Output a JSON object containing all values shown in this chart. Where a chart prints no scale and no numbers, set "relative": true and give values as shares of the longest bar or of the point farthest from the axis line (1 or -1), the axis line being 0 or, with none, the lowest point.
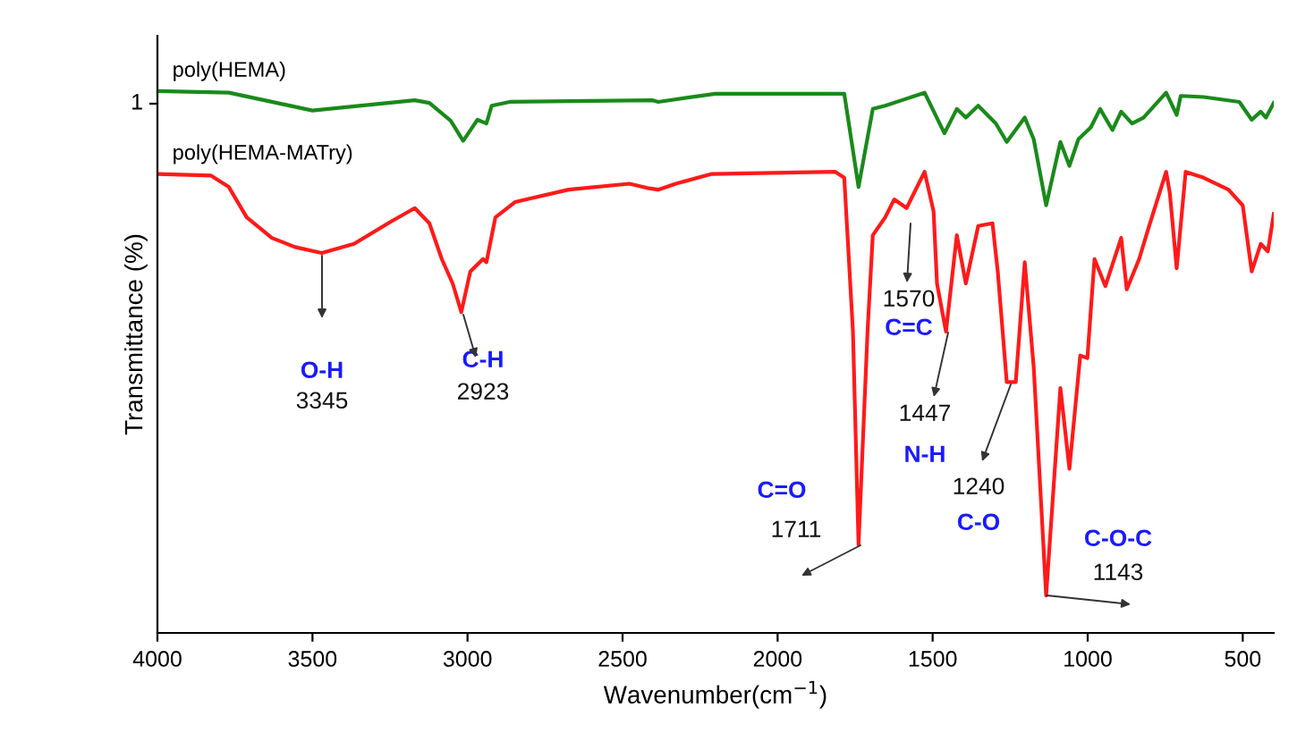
{
  "chart_data": {
    "type": "line",
    "relative": true,
    "xlabel": "Wavenumber(cm$^{−1}$)",
    "ylabel": "Transmittance (%)",
    "xlim": [
      4000,
      400
    ],
    "xticks": [
      4000,
      3500,
      3000,
      2500,
      2000,
      1500,
      1000,
      500
    ],
    "grid": false,
    "legend": false,
    "marker": "none",
    "line_style": "solid",
    "series": [
      {
        "name": "poly(HEMA)",
        "color": "#1a8a1a",
        "x": [
          4000,
          3770,
          3500,
          3170,
          3123,
          3054,
          3014,
          2968,
          2939,
          2922,
          2864,
          2403,
          2385,
          2201,
          1785,
          1739,
          1693,
          1653,
          1526,
          1462,
          1422,
          1393,
          1353,
          1296,
          1261,
          1203,
          1174,
          1134,
          1088,
          1059,
          1030,
          990,
          960,
          920,
          892,
          857,
          820,
          747,
          713,
          700,
          626,
          511,
          471,
          442,
          425,
          400
        ],
        "values": [
          1.0,
          0.997,
          0.964,
          0.983,
          0.978,
          0.945,
          0.908,
          0.947,
          0.94,
          0.973,
          0.98,
          0.983,
          0.98,
          0.995,
          0.995,
          0.823,
          0.967,
          0.973,
          0.997,
          0.922,
          0.967,
          0.951,
          0.973,
          0.94,
          0.906,
          0.951,
          0.911,
          0.789,
          0.906,
          0.862,
          0.911,
          0.933,
          0.967,
          0.928,
          0.962,
          0.94,
          0.951,
          0.997,
          0.956,
          0.991,
          0.989,
          0.98,
          0.947,
          0.962,
          0.951,
          0.978
        ]
      },
      {
        "name": "poly(HEMA-MATry)",
        "color": "#ff1a1a",
        "x": [
          4000,
          3827,
          3770,
          3712,
          3631,
          3556,
          3470,
          3366,
          3250,
          3170,
          3123,
          3083,
          3048,
          3020,
          2991,
          2950,
          2939,
          2910,
          2847,
          2674,
          2478,
          2420,
          2385,
          2328,
          2212,
          1814,
          1785,
          1757,
          1739,
          1710,
          1693,
          1653,
          1624,
          1584,
          1526,
          1497,
          1486,
          1457,
          1422,
          1393,
          1353,
          1307,
          1290,
          1261,
          1232,
          1203,
          1174,
          1134,
          1088,
          1059,
          1024,
          1001,
          978,
          943,
          892,
          874,
          834,
          805,
          747,
          735,
          713,
          684,
          626,
          546,
          500,
          471,
          442,
          419,
          400
        ],
        "values": [
          0.847,
          0.844,
          0.823,
          0.767,
          0.729,
          0.712,
          0.701,
          0.718,
          0.758,
          0.784,
          0.756,
          0.69,
          0.645,
          0.592,
          0.667,
          0.69,
          0.684,
          0.767,
          0.795,
          0.818,
          0.829,
          0.821,
          0.818,
          0.829,
          0.847,
          0.851,
          0.84,
          0.556,
          0.163,
          0.556,
          0.734,
          0.767,
          0.8,
          0.784,
          0.851,
          0.778,
          0.645,
          0.556,
          0.734,
          0.645,
          0.751,
          0.756,
          0.667,
          0.463,
          0.463,
          0.684,
          0.49,
          0.069,
          0.452,
          0.303,
          0.512,
          0.507,
          0.69,
          0.64,
          0.729,
          0.634,
          0.69,
          0.745,
          0.851,
          0.811,
          0.673,
          0.851,
          0.84,
          0.818,
          0.789,
          0.667,
          0.718,
          0.704,
          0.773
        ]
      }
    ],
    "annotations": [
      "O-H",
      "3345",
      "C-H",
      "2923",
      "C=O",
      "1711",
      "1570",
      "C=C",
      "1447",
      "N-H",
      "1240",
      "C-O",
      "C-O-C",
      "1143",
      "1"
    ]
  }
}
